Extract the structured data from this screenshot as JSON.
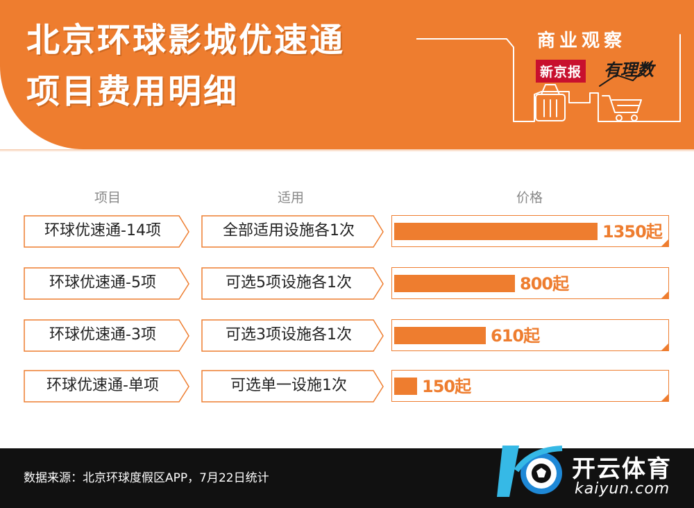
{
  "header": {
    "title_line1": "北京环球影城优速通",
    "title_line2": "项目费用明细",
    "brand_title": "商业观察",
    "logo_box": "新京报",
    "logo_script": "有理数"
  },
  "columns": {
    "item": "项目",
    "apply": "适用",
    "price": "价格"
  },
  "colors": {
    "accent": "#ee7d2f",
    "footer": "#111111",
    "logo_red": "#c8102e"
  },
  "chart_data": {
    "type": "bar",
    "orientation": "horizontal",
    "categories": [
      "环球优速通-14项",
      "环球优速通-5项",
      "环球优速通-3项",
      "环球优速通-单项"
    ],
    "applies": [
      "全部适用设施各1次",
      "可选5项设施各1次",
      "可选3项设施各1次",
      "可选单一设施1次"
    ],
    "values": [
      1350,
      800,
      610,
      150
    ],
    "value_labels": [
      "1350起",
      "800起",
      "610起",
      "150起"
    ],
    "xlim": [
      0,
      1350
    ],
    "grid": false
  },
  "footer": {
    "source": "数据来源：北京环球度假区APP，7月22日统计",
    "watermark_cn": "开云体育",
    "watermark_en": "kaiyun.com"
  }
}
